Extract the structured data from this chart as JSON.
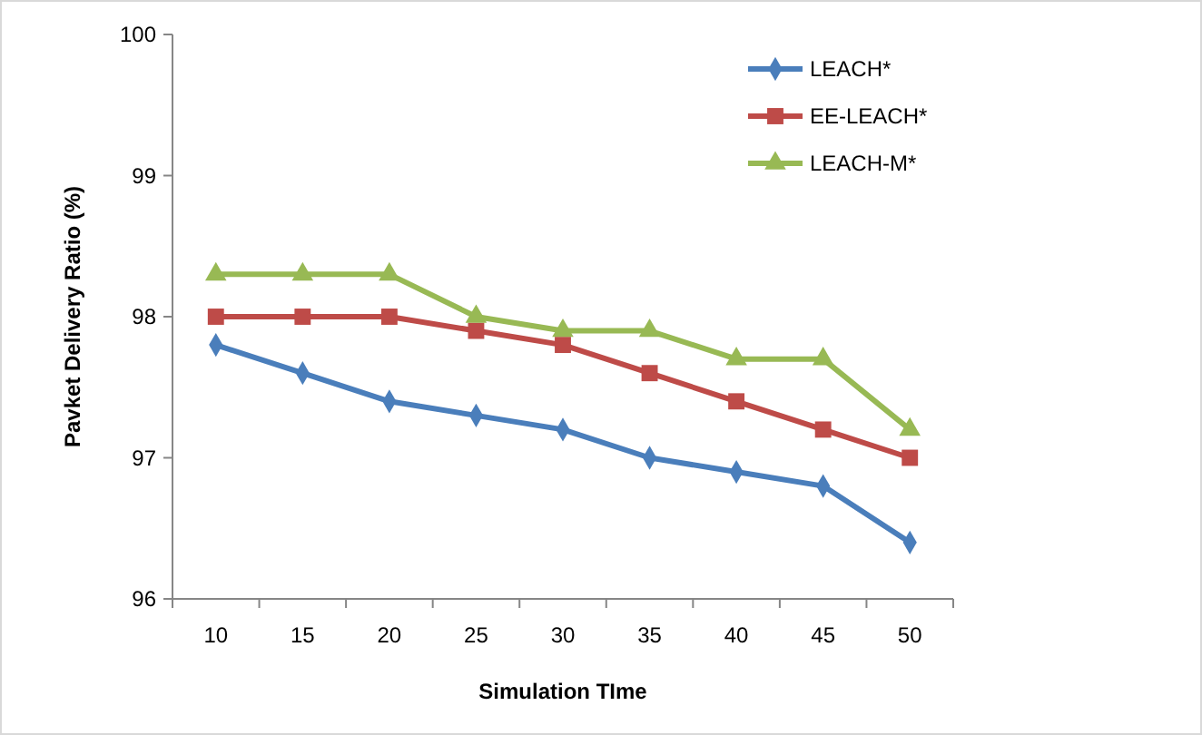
{
  "chart_data": {
    "type": "line",
    "xlabel": "Simulation TIme",
    "ylabel": "Pavket Delivery Ratio (%)",
    "categories": [
      "10",
      "15",
      "20",
      "25",
      "30",
      "35",
      "40",
      "45",
      "50"
    ],
    "ylim": [
      96,
      100
    ],
    "yticks": [
      96,
      97,
      98,
      99,
      100
    ],
    "grid": false,
    "legend": "top right",
    "line_style": "solid",
    "series": [
      {
        "name": "LEACH*",
        "color": "#4a7ebb",
        "marker": "diamond",
        "values": [
          97.8,
          97.6,
          97.4,
          97.3,
          97.2,
          97.0,
          96.9,
          96.8,
          96.4
        ]
      },
      {
        "name": "EE-LEACH*",
        "color": "#be4b48",
        "marker": "square",
        "values": [
          98.0,
          98.0,
          98.0,
          97.9,
          97.8,
          97.6,
          97.4,
          97.2,
          97.0
        ]
      },
      {
        "name": "LEACH-M*",
        "color": "#98b954",
        "marker": "triangle",
        "values": [
          98.3,
          98.3,
          98.3,
          98.0,
          97.9,
          97.9,
          97.7,
          97.7,
          97.2
        ]
      }
    ]
  }
}
